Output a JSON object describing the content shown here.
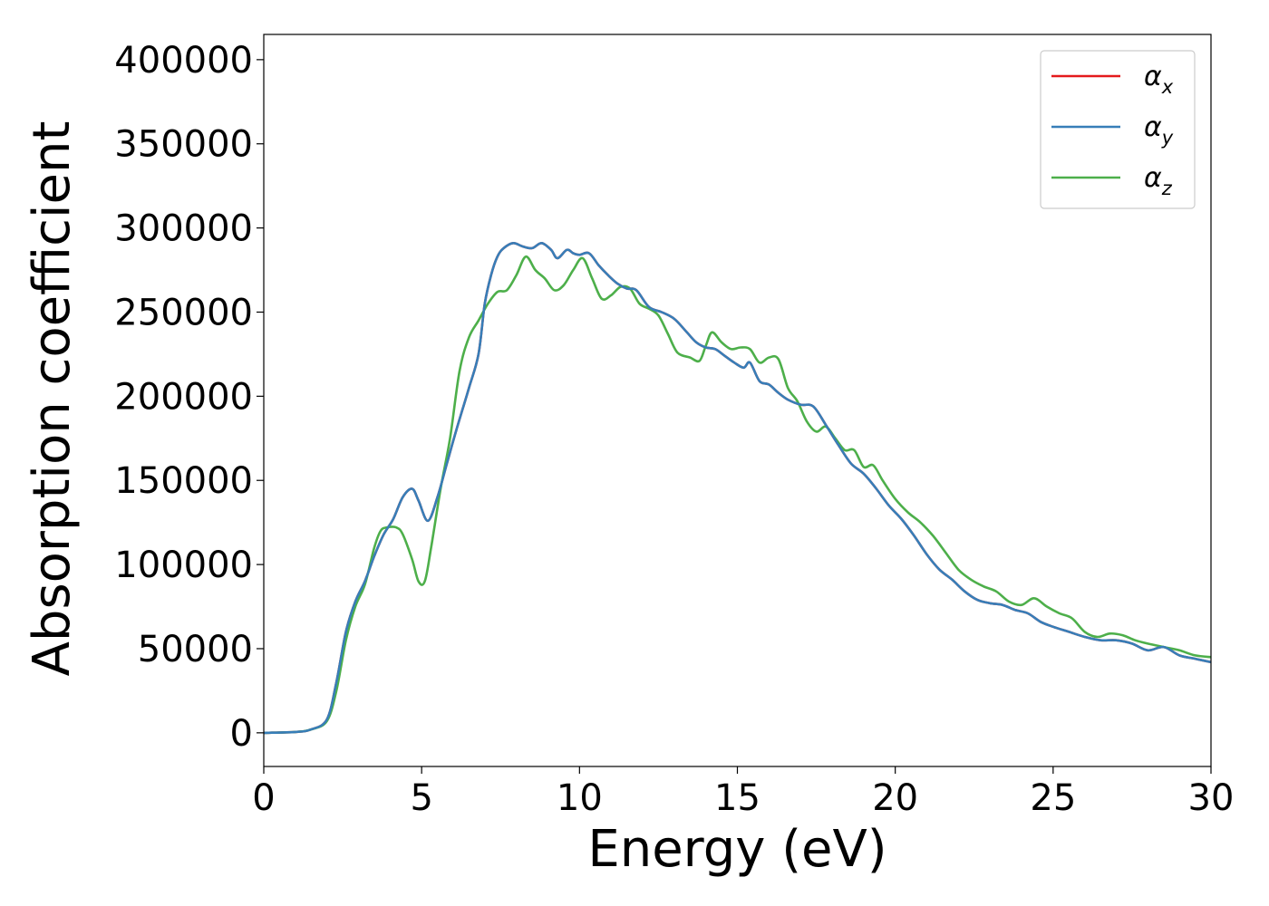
{
  "chart_data": {
    "type": "line",
    "title": "",
    "xlabel": "Energy (eV)",
    "ylabel": "Absorption coefficient",
    "xlim": [
      0,
      30
    ],
    "ylim": [
      -20000,
      415000
    ],
    "xticks": [
      0,
      5,
      10,
      15,
      20,
      25,
      30
    ],
    "xtick_labels": [
      "0",
      "5",
      "10",
      "15",
      "20",
      "25",
      "30"
    ],
    "yticks": [
      0,
      50000,
      100000,
      150000,
      200000,
      250000,
      300000,
      350000,
      400000
    ],
    "ytick_labels": [
      "0",
      "50000",
      "100000",
      "150000",
      "200000",
      "250000",
      "300000",
      "350000",
      "400000"
    ],
    "grid": false,
    "legend_position": "top-right",
    "series": [
      {
        "name": "αx",
        "base": "α",
        "sub": "x",
        "color": "#e41a1c",
        "x": [
          0,
          1,
          1.5,
          2,
          2.3,
          2.6,
          2.9,
          3.2,
          3.5,
          3.8,
          4.1,
          4.4,
          4.7,
          4.9,
          5.2,
          5.5,
          5.8,
          6.1,
          6.5,
          6.8,
          7.0,
          7.2,
          7.4,
          7.6,
          7.9,
          8.2,
          8.5,
          8.8,
          9.1,
          9.3,
          9.6,
          9.8,
          10.0,
          10.3,
          10.6,
          10.9,
          11.2,
          11.5,
          11.8,
          12.2,
          12.6,
          13.0,
          13.4,
          13.7,
          14.0,
          14.3,
          14.6,
          14.9,
          15.2,
          15.4,
          15.7,
          16.0,
          16.3,
          16.6,
          17.0,
          17.4,
          17.8,
          18.2,
          18.6,
          19.0,
          19.4,
          19.8,
          20.2,
          20.6,
          21.0,
          21.4,
          21.8,
          22.2,
          22.6,
          23.0,
          23.4,
          23.8,
          24.2,
          24.6,
          25.0,
          25.5,
          26.0,
          26.5,
          27.0,
          27.5,
          28.0,
          28.5,
          29.0,
          29.5,
          30.0
        ],
        "y": [
          0,
          500,
          2000,
          8000,
          30000,
          60000,
          78000,
          90000,
          105000,
          118000,
          127000,
          140000,
          145000,
          138000,
          126000,
          140000,
          160000,
          180000,
          205000,
          225000,
          255000,
          272000,
          283000,
          288000,
          291000,
          289000,
          288000,
          291000,
          287000,
          282000,
          287000,
          285000,
          284000,
          285000,
          278000,
          272000,
          267000,
          264000,
          263000,
          253000,
          250000,
          246000,
          238000,
          232000,
          229000,
          228000,
          224000,
          220000,
          217000,
          220000,
          209000,
          207000,
          202000,
          198000,
          195000,
          194000,
          183000,
          171000,
          160000,
          154000,
          145000,
          135000,
          127000,
          117000,
          106000,
          97000,
          91000,
          84000,
          79000,
          77000,
          76000,
          73000,
          71000,
          66000,
          63000,
          60000,
          57000,
          55000,
          55000,
          53000,
          49000,
          51000,
          46000,
          44000,
          42000
        ]
      },
      {
        "name": "αy",
        "base": "α",
        "sub": "y",
        "color": "#377eb8",
        "x": [
          0,
          1,
          1.5,
          2,
          2.3,
          2.6,
          2.9,
          3.2,
          3.5,
          3.8,
          4.1,
          4.4,
          4.7,
          4.9,
          5.2,
          5.5,
          5.8,
          6.1,
          6.5,
          6.8,
          7.0,
          7.2,
          7.4,
          7.6,
          7.9,
          8.2,
          8.5,
          8.8,
          9.1,
          9.3,
          9.6,
          9.8,
          10.0,
          10.3,
          10.6,
          10.9,
          11.2,
          11.5,
          11.8,
          12.2,
          12.6,
          13.0,
          13.4,
          13.7,
          14.0,
          14.3,
          14.6,
          14.9,
          15.2,
          15.4,
          15.7,
          16.0,
          16.3,
          16.6,
          17.0,
          17.4,
          17.8,
          18.2,
          18.6,
          19.0,
          19.4,
          19.8,
          20.2,
          20.6,
          21.0,
          21.4,
          21.8,
          22.2,
          22.6,
          23.0,
          23.4,
          23.8,
          24.2,
          24.6,
          25.0,
          25.5,
          26.0,
          26.5,
          27.0,
          27.5,
          28.0,
          28.5,
          29.0,
          29.5,
          30.0
        ],
        "y": [
          0,
          500,
          2000,
          8000,
          30000,
          60000,
          78000,
          90000,
          105000,
          118000,
          127000,
          140000,
          145000,
          138000,
          126000,
          140000,
          160000,
          180000,
          205000,
          225000,
          255000,
          272000,
          283000,
          288000,
          291000,
          289000,
          288000,
          291000,
          287000,
          282000,
          287000,
          285000,
          284000,
          285000,
          278000,
          272000,
          267000,
          264000,
          263000,
          253000,
          250000,
          246000,
          238000,
          232000,
          229000,
          228000,
          224000,
          220000,
          217000,
          220000,
          209000,
          207000,
          202000,
          198000,
          195000,
          194000,
          183000,
          171000,
          160000,
          154000,
          145000,
          135000,
          127000,
          117000,
          106000,
          97000,
          91000,
          84000,
          79000,
          77000,
          76000,
          73000,
          71000,
          66000,
          63000,
          60000,
          57000,
          55000,
          55000,
          53000,
          49000,
          51000,
          46000,
          44000,
          42000
        ]
      },
      {
        "name": "αz",
        "base": "α",
        "sub": "z",
        "color": "#4daf4a",
        "x": [
          0,
          1,
          1.5,
          2,
          2.3,
          2.6,
          2.9,
          3.2,
          3.5,
          3.7,
          3.9,
          4.2,
          4.4,
          4.7,
          4.9,
          5.1,
          5.3,
          5.6,
          5.9,
          6.2,
          6.5,
          6.8,
          7.1,
          7.4,
          7.7,
          8.0,
          8.3,
          8.6,
          8.9,
          9.2,
          9.5,
          9.8,
          10.1,
          10.4,
          10.7,
          11.0,
          11.3,
          11.6,
          11.9,
          12.2,
          12.5,
          12.8,
          13.1,
          13.5,
          13.8,
          14.0,
          14.2,
          14.5,
          14.8,
          15.1,
          15.4,
          15.7,
          16.0,
          16.3,
          16.6,
          16.9,
          17.2,
          17.5,
          17.8,
          18.1,
          18.4,
          18.7,
          19.0,
          19.3,
          19.6,
          20.0,
          20.4,
          20.8,
          21.2,
          21.6,
          22.0,
          22.4,
          22.8,
          23.2,
          23.6,
          24.0,
          24.4,
          24.8,
          25.2,
          25.6,
          26.0,
          26.4,
          26.8,
          27.2,
          27.6,
          28.0,
          28.5,
          29.0,
          29.5,
          30.0
        ],
        "y": [
          0,
          500,
          2000,
          7000,
          25000,
          55000,
          75000,
          88000,
          110000,
          120000,
          122000,
          122000,
          118000,
          103000,
          90000,
          90000,
          110000,
          145000,
          175000,
          215000,
          235000,
          245000,
          255000,
          262000,
          263000,
          272000,
          283000,
          275000,
          270000,
          263000,
          266000,
          275000,
          282000,
          270000,
          258000,
          260000,
          265000,
          264000,
          255000,
          252000,
          248000,
          237000,
          226000,
          223000,
          221000,
          230000,
          238000,
          232000,
          228000,
          229000,
          228000,
          220000,
          223000,
          222000,
          205000,
          197000,
          185000,
          179000,
          182000,
          175000,
          168000,
          168000,
          158000,
          159000,
          150000,
          139000,
          131000,
          125000,
          117000,
          107000,
          97000,
          91000,
          87000,
          84000,
          78000,
          76000,
          80000,
          75000,
          71000,
          68000,
          60000,
          57000,
          59000,
          58000,
          55000,
          53000,
          51000,
          49000,
          46000,
          45000
        ]
      }
    ]
  }
}
